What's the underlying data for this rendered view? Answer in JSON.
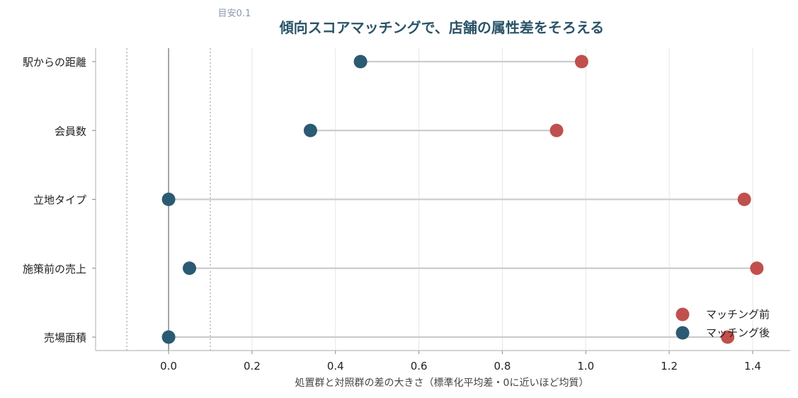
{
  "chart_data": {
    "type": "dumbbell",
    "title": "傾向スコアマッチングで、店舗の属性差をそろえる",
    "reference_label": "目安0.1",
    "xlabel": "処置群と対照群の差の大きさ（標準化平均差・0に近いほど均質）",
    "xlim": [
      -0.175,
      1.49
    ],
    "x_ticks": [
      0.0,
      0.2,
      0.4,
      0.6,
      0.8,
      1.0,
      1.2,
      1.4
    ],
    "x_tick_labels": [
      "0.0",
      "0.2",
      "0.4",
      "0.6",
      "0.8",
      "1.0",
      "1.2",
      "1.4"
    ],
    "reference_lines": [
      -0.1,
      0.1
    ],
    "zero_line": 0,
    "grid": "vertical",
    "legend_position": "lower-right",
    "categories": [
      "駅からの距離",
      "会員数",
      "立地タイプ",
      "施策前の売上",
      "売場面積"
    ],
    "series": [
      {
        "name": "マッチング前",
        "color": "#c0504d",
        "values": [
          0.99,
          0.93,
          1.38,
          1.41,
          1.34
        ]
      },
      {
        "name": "マッチング後",
        "color": "#2b5a73",
        "values": [
          0.46,
          0.34,
          0.0,
          0.05,
          0.0
        ]
      }
    ],
    "connector_color": "#cccccc"
  }
}
